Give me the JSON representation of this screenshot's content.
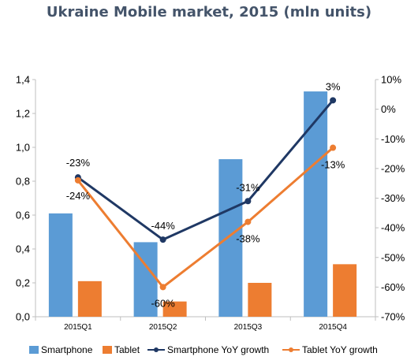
{
  "chart_data": {
    "type": "bar",
    "title": "Ukraine Mobile market, 2015 (mln units)",
    "categories": [
      "2015Q1",
      "2015Q2",
      "2015Q3",
      "2015Q4"
    ],
    "series": [
      {
        "name": "Smartphone",
        "kind": "bar",
        "axis": "left",
        "color": "#5b9bd5",
        "values": [
          0.61,
          0.44,
          0.93,
          1.33
        ]
      },
      {
        "name": "Tablet",
        "kind": "bar",
        "axis": "left",
        "color": "#ed7d31",
        "values": [
          0.21,
          0.09,
          0.2,
          0.31
        ]
      },
      {
        "name": "Smartphone YoY growth",
        "kind": "line",
        "axis": "right",
        "color": "#1f3864",
        "values": [
          -23,
          -44,
          -31,
          3
        ],
        "labels": [
          "-23%",
          "-44%",
          "-31%",
          "3%"
        ]
      },
      {
        "name": "Tablet YoY  growth",
        "kind": "line",
        "axis": "right",
        "color": "#ed7d31",
        "values": [
          -24,
          -60,
          -38,
          -13
        ],
        "labels": [
          "-24%",
          "-60%",
          "-38%",
          "-13%"
        ]
      }
    ],
    "ylim_left": [
      0,
      1.4
    ],
    "yticks_left": [
      "0,0",
      "0,2",
      "0,4",
      "0,6",
      "0,8",
      "1,0",
      "1,2",
      "1,4"
    ],
    "ylim_right": [
      -70,
      10
    ],
    "yticks_right": [
      "-70%",
      "-60%",
      "-50%",
      "-40%",
      "-30%",
      "-20%",
      "-10%",
      "0%",
      "10%"
    ],
    "grid": false,
    "legend_position": "bottom"
  }
}
